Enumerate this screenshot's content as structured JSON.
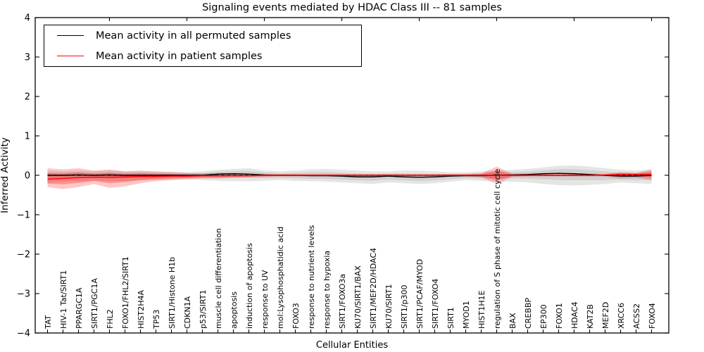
{
  "title": "Signaling events mediated by HDAC Class III -- 81 samples",
  "axes": {
    "ylabel": "Inferred Activity",
    "xlabel": "Cellular Entities",
    "ylim": [
      -4,
      4
    ],
    "yticks": [
      4,
      3,
      2,
      1,
      0,
      -1,
      -2,
      -3,
      -4
    ],
    "grid": false
  },
  "legend": {
    "position": "upper-left",
    "entries": [
      {
        "label": "Mean activity in all permuted samples",
        "color": "#000000"
      },
      {
        "label": "Mean activity in patient samples",
        "color": "#ff0000"
      }
    ]
  },
  "colors": {
    "permuted_line": "#000000",
    "patient_line": "#ff0000",
    "permuted_band": "rgba(0,0,0,0.10)",
    "patient_band": "rgba(255,0,0,0.22)",
    "patient_band_inner": "rgba(255,0,0,0.28)",
    "permuted_band_inner": "rgba(0,0,0,0.09)",
    "zero_line": "#000000"
  },
  "chart_data": {
    "type": "line",
    "title": "Signaling events mediated by HDAC Class III -- 81 samples",
    "xlabel": "Cellular Entities",
    "ylabel": "Inferred Activity",
    "ylim": [
      -4,
      4
    ],
    "yticks": [
      4,
      3,
      2,
      1,
      0,
      -1,
      -2,
      -3,
      -4
    ],
    "top_axis_tick_positions": [
      4,
      9,
      14,
      19,
      24,
      29,
      34,
      39
    ],
    "zero_line": {
      "y": 0,
      "style": "dashed",
      "color": "#000000"
    },
    "categories": [
      "TAT",
      "HIV-1 Tat/SIRT1",
      "PPARGC1A",
      "SIRT1/PGC1A",
      "FHL2",
      "FOXO1/FHL2/SIRT1",
      "HIST2H4A",
      "TP53",
      "SIRT1/Histone H1b",
      "CDKN1A",
      "p53/SIRT1",
      "muscle cell differentiation",
      "apoptosis",
      "induction of apoptosis",
      "response to UV",
      "mol:Lysophosphatidic acid",
      "FOXO3",
      "response to nutrient levels",
      "response to hypoxia",
      "SIRT1/FOXO3a",
      "KU70/SIRT1/BAX",
      "SIRT1/MEF2D/HDAC4",
      "KU70/SIRT1",
      "SIRT1/p300",
      "SIRT1/PCAF/MYOD",
      "SIRT1/FOXO4",
      "SIRT1",
      "MYOD1",
      "HIST1H1E",
      "regulation of S phase of mitotic cell cycle",
      "BAX",
      "CREBBP",
      "EP300",
      "FOXO1",
      "HDAC4",
      "KAT2B",
      "MEF2D",
      "XRCC6",
      "ACSS2",
      "FOXO4"
    ],
    "series": [
      {
        "name": "Mean activity in all permuted samples",
        "color": "#000000",
        "values": [
          0.0,
          0.0,
          0.01,
          0.0,
          0.01,
          0.0,
          0.0,
          0.0,
          0.0,
          0.0,
          0.0,
          0.03,
          0.04,
          0.03,
          0.01,
          0.0,
          0.0,
          -0.01,
          -0.01,
          -0.02,
          -0.04,
          -0.04,
          -0.02,
          -0.04,
          -0.05,
          -0.04,
          -0.02,
          -0.01,
          -0.01,
          0.0,
          0.01,
          0.02,
          0.04,
          0.05,
          0.04,
          0.02,
          0.0,
          -0.02,
          -0.02,
          0.0
        ],
        "band_upper": [
          0.12,
          0.1,
          0.12,
          0.1,
          0.12,
          0.1,
          0.1,
          0.09,
          0.09,
          0.08,
          0.1,
          0.14,
          0.16,
          0.18,
          0.12,
          0.1,
          0.12,
          0.15,
          0.16,
          0.14,
          0.12,
          0.1,
          0.1,
          0.12,
          0.12,
          0.1,
          0.08,
          0.08,
          0.1,
          0.12,
          0.14,
          0.16,
          0.2,
          0.24,
          0.25,
          0.22,
          0.18,
          0.14,
          0.12,
          0.15
        ],
        "band_lower": [
          -0.18,
          -0.15,
          -0.15,
          -0.13,
          -0.15,
          -0.14,
          -0.13,
          -0.12,
          -0.11,
          -0.1,
          -0.12,
          -0.14,
          -0.15,
          -0.15,
          -0.14,
          -0.12,
          -0.14,
          -0.15,
          -0.16,
          -0.18,
          -0.2,
          -0.22,
          -0.18,
          -0.2,
          -0.22,
          -0.2,
          -0.16,
          -0.12,
          -0.14,
          -0.16,
          -0.16,
          -0.18,
          -0.22,
          -0.25,
          -0.26,
          -0.24,
          -0.22,
          -0.18,
          -0.2,
          -0.22
        ]
      },
      {
        "name": "Mean activity in patient samples",
        "color": "#ff0000",
        "values": [
          -0.1,
          -0.08,
          -0.06,
          -0.05,
          -0.05,
          -0.04,
          -0.03,
          -0.03,
          -0.02,
          -0.02,
          -0.01,
          -0.01,
          -0.01,
          -0.01,
          0.0,
          0.0,
          0.0,
          0.0,
          0.0,
          0.0,
          0.0,
          0.0,
          0.0,
          0.0,
          0.0,
          0.0,
          0.0,
          0.0,
          0.0,
          0.0,
          0.0,
          0.0,
          0.0,
          0.0,
          0.0,
          0.0,
          0.01,
          0.02,
          0.02,
          0.02
        ],
        "band_upper": [
          0.18,
          0.15,
          0.18,
          0.12,
          0.15,
          0.1,
          0.12,
          0.1,
          0.08,
          0.06,
          0.05,
          0.06,
          0.05,
          0.04,
          0.03,
          0.03,
          0.03,
          0.03,
          0.03,
          0.03,
          0.03,
          0.03,
          0.03,
          0.03,
          0.03,
          0.03,
          0.03,
          0.03,
          0.05,
          0.22,
          0.04,
          0.03,
          0.03,
          0.03,
          0.03,
          0.03,
          0.03,
          0.08,
          0.06,
          0.15
        ],
        "band_lower": [
          -0.3,
          -0.35,
          -0.3,
          -0.22,
          -0.32,
          -0.28,
          -0.2,
          -0.15,
          -0.12,
          -0.1,
          -0.08,
          -0.08,
          -0.06,
          -0.05,
          -0.04,
          -0.03,
          -0.03,
          -0.03,
          -0.03,
          -0.03,
          -0.03,
          -0.03,
          -0.03,
          -0.03,
          -0.03,
          -0.03,
          -0.03,
          -0.03,
          -0.05,
          -0.22,
          -0.04,
          -0.03,
          -0.03,
          -0.03,
          -0.03,
          -0.03,
          -0.03,
          -0.08,
          -0.06,
          -0.12
        ]
      }
    ]
  }
}
